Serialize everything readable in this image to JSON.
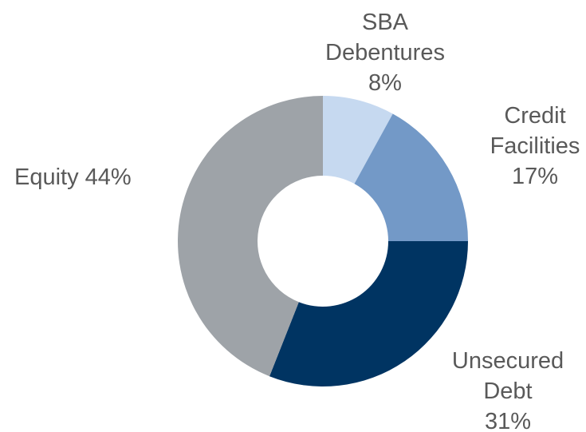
{
  "chart_data": {
    "type": "pie",
    "categories": [
      "SBA Debentures",
      "Credit Facilities",
      "Unsecured Debt",
      "Equity"
    ],
    "values": [
      8,
      17,
      31,
      44
    ],
    "value_labels": [
      "8%",
      "17%",
      "31%",
      "44%"
    ],
    "colors": [
      "#c6d9f0",
      "#7399c7",
      "#003462",
      "#9ea3a8"
    ]
  }
}
